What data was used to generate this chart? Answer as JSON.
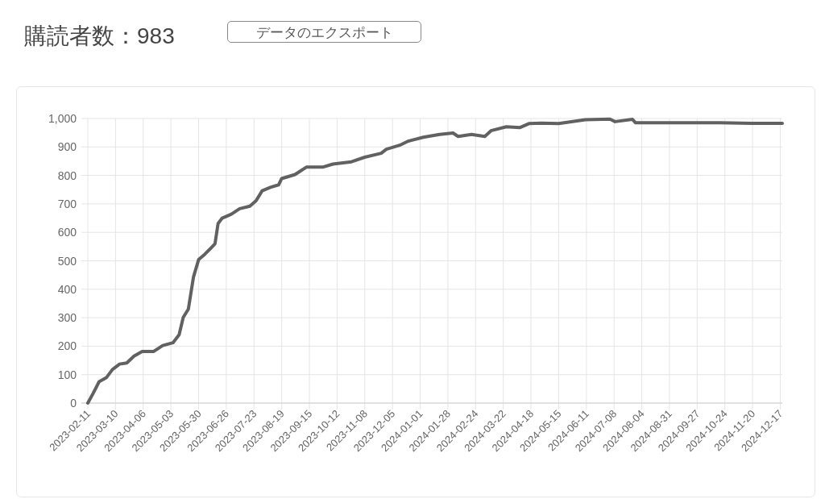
{
  "chart_data": {
    "type": "line",
    "title": "購読者数：983",
    "annotations": [
      "データのエクスポート"
    ],
    "x": [
      "2023-02-11",
      "2023-02-16",
      "2023-02-22",
      "2023-03-01",
      "2023-03-07",
      "2023-03-14",
      "2023-03-21",
      "2023-03-28",
      "2023-04-05",
      "2023-04-16",
      "2023-04-25",
      "2023-05-05",
      "2023-05-11",
      "2023-05-15",
      "2023-05-20",
      "2023-05-25",
      "2023-05-30",
      "2023-06-05",
      "2023-06-10",
      "2023-06-15",
      "2023-06-18",
      "2023-06-22",
      "2023-07-01",
      "2023-07-09",
      "2023-07-19",
      "2023-07-25",
      "2023-07-31",
      "2023-08-08",
      "2023-08-16",
      "2023-08-19",
      "2023-09-01",
      "2023-09-12",
      "2023-09-28",
      "2023-10-08",
      "2023-10-26",
      "2023-11-08",
      "2023-11-24",
      "2023-11-29",
      "2023-12-12",
      "2023-12-20",
      "2024-01-04",
      "2024-01-20",
      "2024-02-02",
      "2024-02-07",
      "2024-02-20",
      "2024-03-04",
      "2024-03-10",
      "2024-03-25",
      "2024-04-07",
      "2024-04-16",
      "2024-04-28",
      "2024-05-15",
      "2024-06-10",
      "2024-07-04",
      "2024-07-09",
      "2024-07-26",
      "2024-07-29",
      "2024-08-28",
      "2024-10-19",
      "2024-11-19",
      "2024-12-19"
    ],
    "series": [
      {
        "color": "#616161",
        "values": [
          0,
          33,
          75,
          89,
          118,
          137,
          141,
          165,
          181,
          181,
          202,
          212,
          240,
          301,
          330,
          443,
          504,
          523,
          541,
          560,
          631,
          650,
          664,
          683,
          692,
          711,
          746,
          758,
          767,
          789,
          803,
          829,
          829,
          840,
          848,
          864,
          878,
          892,
          906,
          920,
          934,
          944,
          949,
          937,
          944,
          937,
          957,
          971,
          968,
          982,
          984,
          982,
          996,
          998,
          989,
          997,
          985,
          985,
          985,
          983,
          983
        ]
      }
    ],
    "xlim": [
      "2023-02-11",
      "2024-12-19"
    ],
    "xticks": [
      "2023-02-11",
      "2023-03-10",
      "2023-04-06",
      "2023-05-03",
      "2023-05-30",
      "2023-06-26",
      "2023-07-23",
      "2023-08-19",
      "2023-09-15",
      "2023-10-12",
      "2023-11-08",
      "2023-12-05",
      "2024-01-01",
      "2024-01-28",
      "2024-02-24",
      "2024-03-22",
      "2024-04-18",
      "2024-05-15",
      "2024-06-11",
      "2024-07-08",
      "2024-08-04",
      "2024-08-31",
      "2024-09-27",
      "2024-10-24",
      "2024-11-20",
      "2024-12-17"
    ],
    "ylim": [
      0,
      1000
    ],
    "yticks": [
      {
        "value": 0,
        "label": "0"
      },
      {
        "value": 100,
        "label": "100"
      },
      {
        "value": 200,
        "label": "200"
      },
      {
        "value": 300,
        "label": "300"
      },
      {
        "value": 400,
        "label": "400"
      },
      {
        "value": 500,
        "label": "500"
      },
      {
        "value": 600,
        "label": "600"
      },
      {
        "value": 700,
        "label": "700"
      },
      {
        "value": 800,
        "label": "800"
      },
      {
        "value": 900,
        "label": "900"
      },
      {
        "value": 1000,
        "label": "1,000"
      }
    ],
    "grid": true,
    "marker": "none",
    "line_style": "solid"
  }
}
